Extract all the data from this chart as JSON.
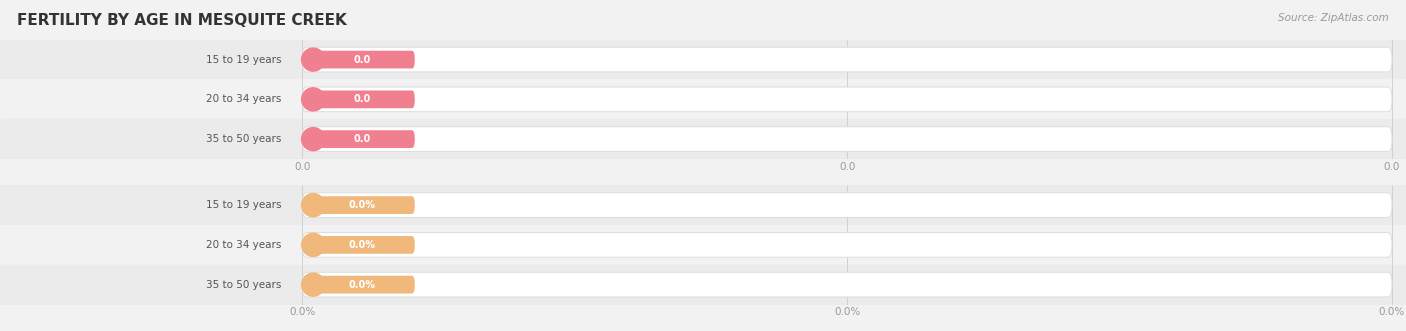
{
  "title": "FERTILITY BY AGE IN MESQUITE CREEK",
  "source_text": "Source: ZipAtlas.com",
  "top_group": {
    "labels": [
      "15 to 19 years",
      "20 to 34 years",
      "35 to 50 years"
    ],
    "values": [
      0.0,
      0.0,
      0.0
    ],
    "value_labels": [
      "0.0",
      "0.0",
      "0.0"
    ],
    "bar_fill_color": "#f08090",
    "label_color": "#555555",
    "circle_color": "#f08090",
    "value_label_color": "#ffffff",
    "axis_ticks": [
      "0.0",
      "0.0",
      "0.0"
    ],
    "bar_border_color": "#dddddd"
  },
  "bottom_group": {
    "labels": [
      "15 to 19 years",
      "20 to 34 years",
      "35 to 50 years"
    ],
    "values": [
      0.0,
      0.0,
      0.0
    ],
    "value_labels": [
      "0.0%",
      "0.0%",
      "0.0%"
    ],
    "bar_fill_color": "#f0b87a",
    "label_color": "#555555",
    "circle_color": "#f0b87a",
    "value_label_color": "#ffffff",
    "axis_ticks": [
      "0.0%",
      "0.0%",
      "0.0%"
    ],
    "bar_border_color": "#dddddd"
  },
  "bg_color": "#f2f2f2",
  "row_colors": [
    "#ebebeb",
    "#f2f2f2"
  ],
  "title_color": "#333333",
  "title_fontsize": 11,
  "source_color": "#999999",
  "figsize": [
    14.06,
    3.31
  ],
  "dpi": 100
}
